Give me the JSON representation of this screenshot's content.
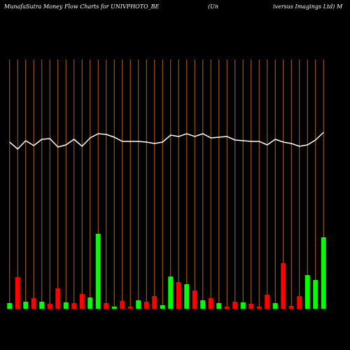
{
  "chart_data": {
    "type": "bar",
    "title": "MunafaSutra  Money Flow  Charts for UNIVPHOTO_BE",
    "subtitle": [
      "(Un",
      "iversus Imagings Ltd) M"
    ],
    "values": [
      8,
      45,
      10,
      15,
      10,
      7,
      29,
      9,
      8,
      21,
      16,
      107,
      8,
      3,
      11,
      3,
      12,
      10,
      18,
      5,
      46,
      38,
      35,
      26,
      12,
      15,
      8,
      3,
      10,
      9,
      7,
      3,
      20,
      8,
      65,
      4,
      18,
      48,
      41,
      102
    ],
    "colors": [
      "#00ff00",
      "#ff0000",
      "#00ff00",
      "#ff0000",
      "#00ff00",
      "#ff0000",
      "#ff0000",
      "#00ff00",
      "#ff0000",
      "#ff0000",
      "#00ff00",
      "#00ff00",
      "#ff0000",
      "#00ff00",
      "#ff0000",
      "#ff0000",
      "#00ff00",
      "#ff0000",
      "#ff0000",
      "#00ff00",
      "#00ff00",
      "#ff0000",
      "#00ff00",
      "#ff0000",
      "#00ff00",
      "#ff0000",
      "#00ff00",
      "#ff0000",
      "#ff0000",
      "#00ff00",
      "#ff0000",
      "#ff0000",
      "#ff0000",
      "#00ff00",
      "#ff0000",
      "#ff0000",
      "#ff0000",
      "#00ff00",
      "#00ff00",
      "#00ff00"
    ],
    "line": {
      "color": "#ffffff",
      "values": [
        238,
        228,
        240,
        233,
        242,
        243,
        231,
        234,
        242,
        232,
        244,
        250,
        249,
        245,
        239,
        239,
        239,
        238,
        236,
        238,
        248,
        246,
        250,
        246,
        250,
        244,
        245,
        246,
        241,
        240,
        239,
        239,
        234,
        242,
        238,
        236,
        232,
        234,
        241,
        252
      ]
    },
    "ylim": [
      0,
      356
    ],
    "grid_color": "#b8650a"
  }
}
